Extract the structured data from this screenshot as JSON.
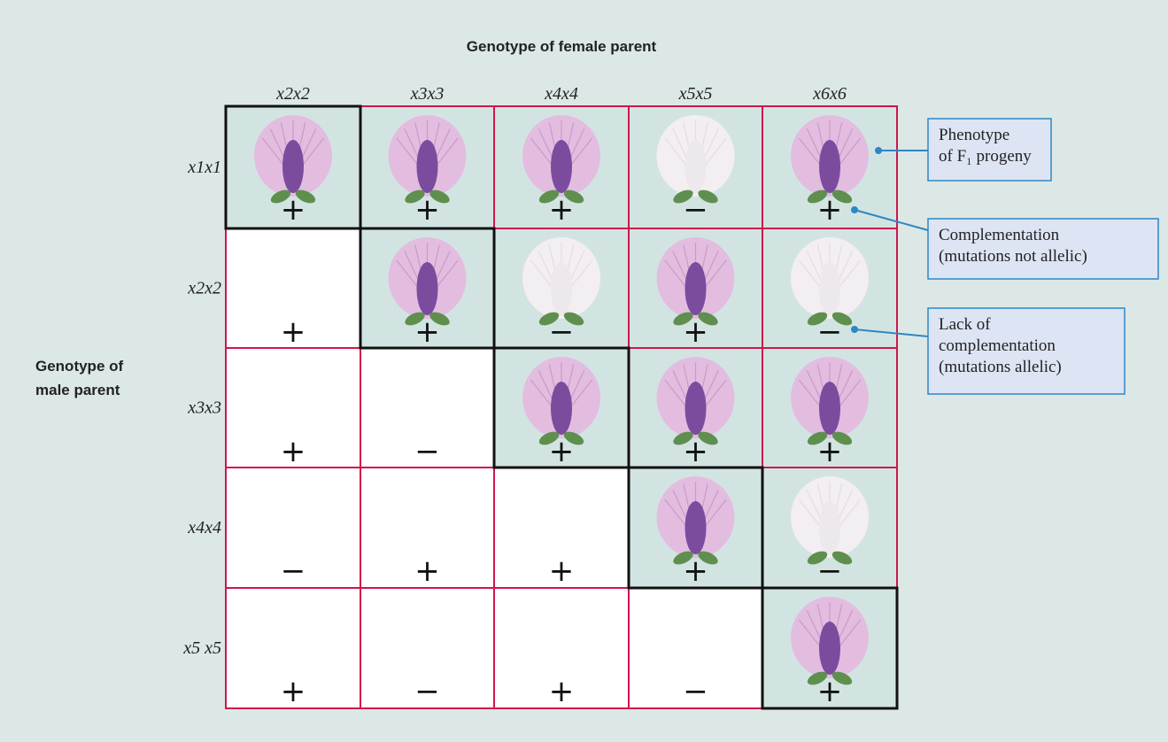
{
  "title": "Genotype of female parent",
  "row_axis_label": [
    "Genotype of",
    "male parent"
  ],
  "columns": [
    "x2x2",
    "x3x3",
    "x4x4",
    "x5x5",
    "x6x6"
  ],
  "rows": [
    {
      "label": "x1x1",
      "cells": [
        "+",
        "+",
        "+",
        "−",
        "+"
      ]
    },
    {
      "label": "x2x2",
      "cells": [
        "+",
        "+",
        "−",
        "+",
        "−"
      ]
    },
    {
      "label": "x3x3",
      "cells": [
        "+",
        "−",
        "+",
        "+",
        "+"
      ]
    },
    {
      "label": "x4x4",
      "cells": [
        "−",
        "+",
        "+",
        "+",
        "−"
      ]
    },
    {
      "label": "x5 x5",
      "cells": [
        "+",
        "−",
        "+",
        "−",
        "+"
      ]
    }
  ],
  "callouts": [
    {
      "lines": [
        "Phenotype",
        "of F₁ progeny"
      ]
    },
    {
      "lines": [
        "Complementation",
        "(mutations not allelic)"
      ]
    },
    {
      "lines": [
        "Lack of",
        "complementation",
        "(mutations allelic)"
      ]
    }
  ]
}
